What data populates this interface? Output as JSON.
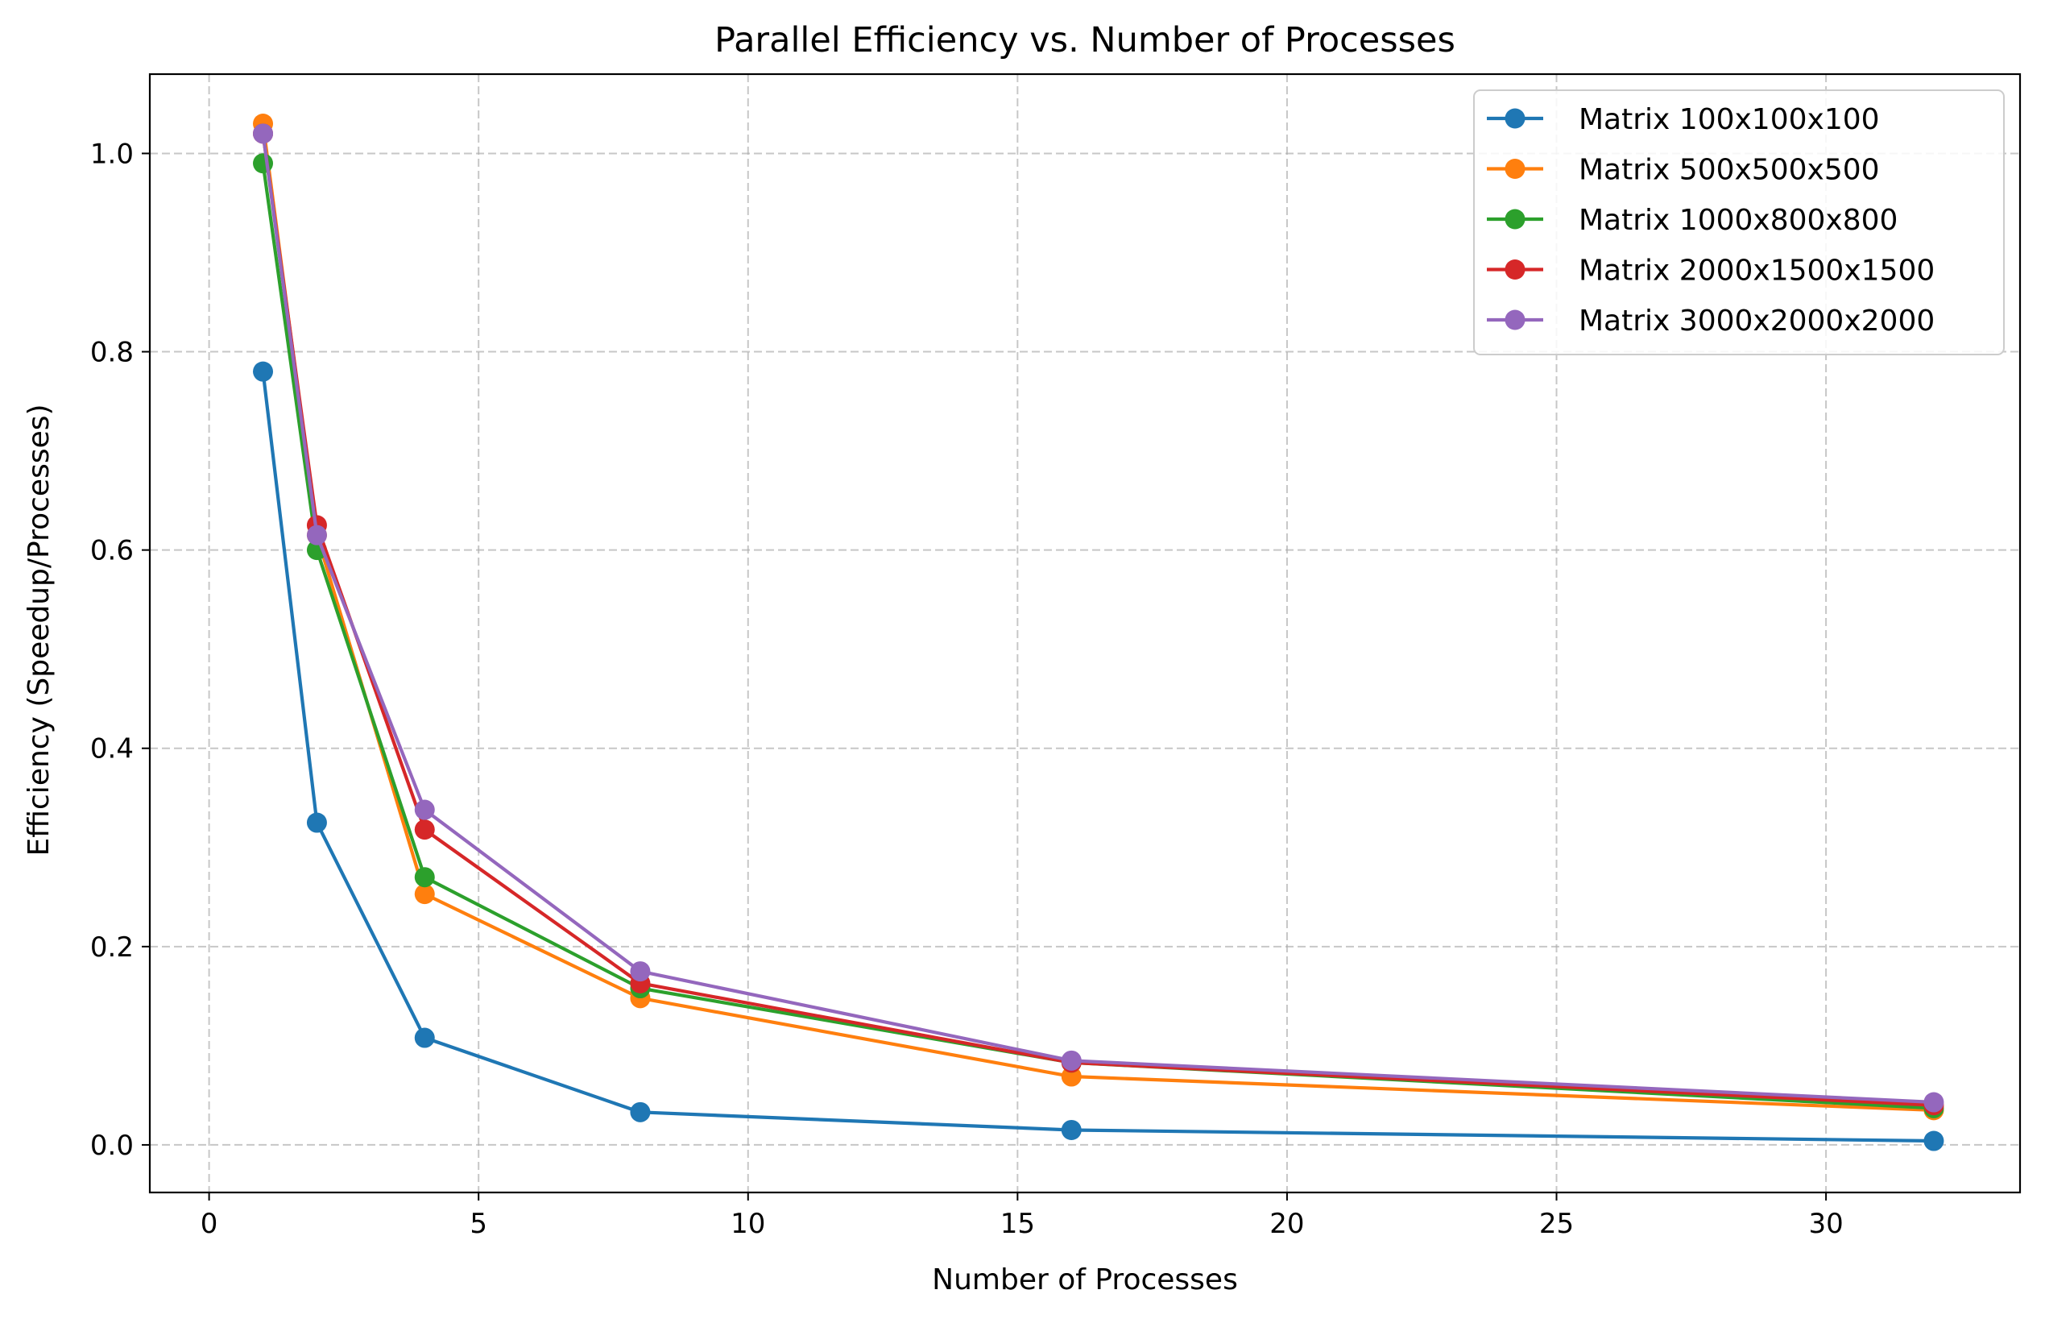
{
  "chart_data": {
    "type": "line",
    "title": "Parallel Efficiency vs. Number of Processes",
    "xlabel": "Number of Processes",
    "ylabel": "Efficiency (Speedup/Processes)",
    "xlim": [
      -1.1,
      33.6
    ],
    "ylim": [
      -0.048,
      1.08
    ],
    "xticks": [
      0,
      5,
      10,
      15,
      20,
      25,
      30
    ],
    "xtick_labels": [
      "0",
      "5",
      "10",
      "15",
      "20",
      "25",
      "30"
    ],
    "yticks": [
      0.0,
      0.2,
      0.4,
      0.6,
      0.8,
      1.0
    ],
    "ytick_labels": [
      "0.0",
      "0.2",
      "0.4",
      "0.6",
      "0.8",
      "1.0"
    ],
    "grid": true,
    "legend_position": "top-right",
    "x": [
      1,
      2,
      4,
      8,
      16,
      32
    ],
    "series": [
      {
        "name": "Matrix 100x100x100",
        "color": "#1f77b4",
        "values": [
          0.78,
          0.325,
          0.108,
          0.033,
          0.015,
          0.004
        ]
      },
      {
        "name": "Matrix 500x500x500",
        "color": "#ff7f0e",
        "values": [
          1.03,
          0.615,
          0.253,
          0.148,
          0.069,
          0.035
        ]
      },
      {
        "name": "Matrix 1000x800x800",
        "color": "#2ca02c",
        "values": [
          0.99,
          0.6,
          0.27,
          0.158,
          0.083,
          0.037
        ]
      },
      {
        "name": "Matrix 2000x1500x1500",
        "color": "#d62728",
        "values": [
          1.02,
          0.625,
          0.318,
          0.163,
          0.083,
          0.04
        ]
      },
      {
        "name": "Matrix 3000x2000x2000",
        "color": "#9467bd",
        "values": [
          1.02,
          0.615,
          0.338,
          0.175,
          0.085,
          0.043
        ]
      }
    ]
  }
}
